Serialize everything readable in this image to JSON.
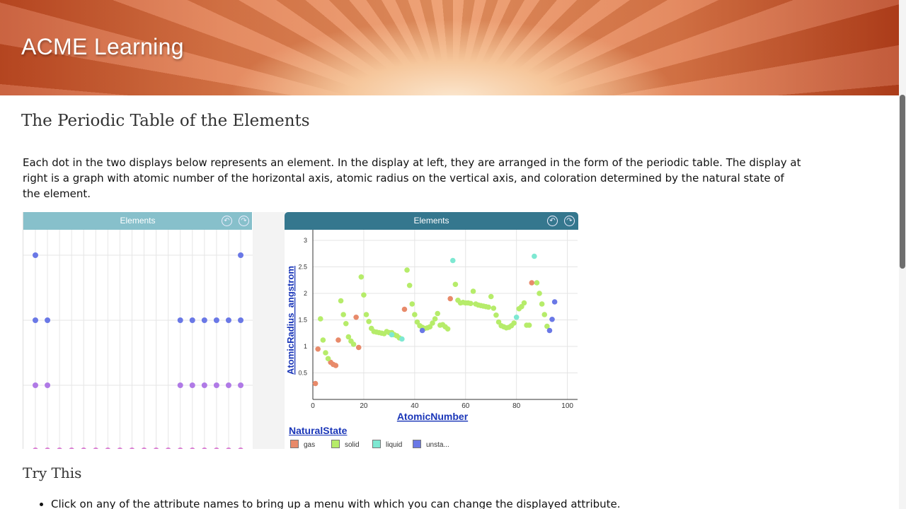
{
  "header": {
    "brand": "ACME Learning"
  },
  "page": {
    "title": "The Periodic Table of the Elements",
    "intro": "Each dot in the two displays below represents an element. In the display at left, they are arranged in the form of the periodic table. The display at right is a graph with atomic number of the horizontal axis, atomic radius on the vertical axis, and coloration determined by the natural state of the element.",
    "try_heading": "Try This",
    "tips": [
      "Click on any of the attribute names to bring up a menu with which you can change the displayed attribute."
    ]
  },
  "left_panel": {
    "title": "Elements",
    "undo_icon": "undo-icon",
    "redo_icon": "redo-icon"
  },
  "right_panel": {
    "title": "Elements",
    "undo_icon": "undo-icon",
    "redo_icon": "redo-icon"
  },
  "colors": {
    "gas": "#e88a6a",
    "solid": "#b6ec6a",
    "liquid": "#7ee8d2",
    "unstable": "#6a78e6",
    "periodic_blue": "#6a78e6",
    "periodic_purple": "#b07ae6",
    "periodic_pink": "#d878d0"
  },
  "periodic_table": {
    "rows": [
      {
        "period": 1,
        "groups": [
          1,
          18
        ]
      },
      {
        "period": 2,
        "groups": [
          1,
          2,
          13,
          14,
          15,
          16,
          17,
          18
        ]
      },
      {
        "period": 3,
        "groups": [
          1,
          2,
          13,
          14,
          15,
          16,
          17,
          18
        ]
      },
      {
        "period": 4,
        "groups": [
          1,
          2,
          3,
          4,
          5,
          6,
          7,
          8,
          9,
          10,
          11,
          12,
          13,
          14,
          15,
          16,
          17,
          18
        ]
      }
    ]
  },
  "chart_data": {
    "type": "scatter",
    "title": "Elements",
    "xlabel": "AtomicNumber",
    "ylabel": "AtomicRadius_angstrom",
    "xlim": [
      0,
      104
    ],
    "ylim": [
      0,
      3.2
    ],
    "xticks": [
      0,
      20,
      40,
      60,
      80,
      100
    ],
    "yticks": [
      0.5,
      1,
      1.5,
      2,
      2.5,
      3
    ],
    "grid": true,
    "legend": {
      "title": "NaturalState",
      "placement": "bottom",
      "entries": [
        {
          "name": "gas",
          "color": "#e88a6a"
        },
        {
          "name": "solid",
          "color": "#b6ec6a"
        },
        {
          "name": "liquid",
          "color": "#7ee8d2"
        },
        {
          "name": "unsta...",
          "color": "#6a78e6"
        }
      ]
    },
    "series": [
      {
        "name": "gas",
        "color": "#e88a6a",
        "points": [
          [
            1,
            0.3
          ],
          [
            2,
            0.95
          ],
          [
            7,
            0.7
          ],
          [
            8,
            0.66
          ],
          [
            9,
            0.64
          ],
          [
            10,
            1.12
          ],
          [
            17,
            1.55
          ],
          [
            18,
            0.98
          ],
          [
            36,
            1.7
          ],
          [
            54,
            1.9
          ],
          [
            86,
            2.2
          ]
        ]
      },
      {
        "name": "solid",
        "color": "#b6ec6a",
        "points": [
          [
            3,
            1.52
          ],
          [
            4,
            1.12
          ],
          [
            5,
            0.88
          ],
          [
            6,
            0.77
          ],
          [
            11,
            1.86
          ],
          [
            12,
            1.6
          ],
          [
            13,
            1.43
          ],
          [
            14,
            1.18
          ],
          [
            15,
            1.1
          ],
          [
            16,
            1.04
          ],
          [
            19,
            2.31
          ],
          [
            20,
            1.97
          ],
          [
            21,
            1.6
          ],
          [
            22,
            1.47
          ],
          [
            23,
            1.34
          ],
          [
            24,
            1.28
          ],
          [
            25,
            1.27
          ],
          [
            26,
            1.26
          ],
          [
            27,
            1.25
          ],
          [
            28,
            1.24
          ],
          [
            29,
            1.28
          ],
          [
            30,
            1.26
          ],
          [
            31,
            1.26
          ],
          [
            32,
            1.22
          ],
          [
            33,
            1.2
          ],
          [
            34,
            1.16
          ],
          [
            37,
            2.44
          ],
          [
            38,
            2.15
          ],
          [
            39,
            1.8
          ],
          [
            40,
            1.6
          ],
          [
            41,
            1.46
          ],
          [
            42,
            1.39
          ],
          [
            43,
            1.36
          ],
          [
            44,
            1.34
          ],
          [
            45,
            1.35
          ],
          [
            46,
            1.37
          ],
          [
            47,
            1.44
          ],
          [
            48,
            1.52
          ],
          [
            49,
            1.62
          ],
          [
            50,
            1.4
          ],
          [
            51,
            1.41
          ],
          [
            52,
            1.37
          ],
          [
            53,
            1.33
          ],
          [
            56,
            2.17
          ],
          [
            57,
            1.87
          ],
          [
            58,
            1.82
          ],
          [
            59,
            1.83
          ],
          [
            60,
            1.82
          ],
          [
            61,
            1.82
          ],
          [
            62,
            1.81
          ],
          [
            63,
            2.04
          ],
          [
            64,
            1.8
          ],
          [
            65,
            1.78
          ],
          [
            66,
            1.77
          ],
          [
            67,
            1.76
          ],
          [
            68,
            1.75
          ],
          [
            69,
            1.74
          ],
          [
            70,
            1.94
          ],
          [
            71,
            1.72
          ],
          [
            72,
            1.59
          ],
          [
            73,
            1.46
          ],
          [
            74,
            1.39
          ],
          [
            75,
            1.37
          ],
          [
            76,
            1.35
          ],
          [
            77,
            1.36
          ],
          [
            78,
            1.39
          ],
          [
            79,
            1.44
          ],
          [
            81,
            1.71
          ],
          [
            82,
            1.75
          ],
          [
            83,
            1.82
          ],
          [
            84,
            1.4
          ],
          [
            85,
            1.4
          ],
          [
            88,
            2.2
          ],
          [
            89,
            2.0
          ],
          [
            90,
            1.8
          ],
          [
            91,
            1.6
          ],
          [
            92,
            1.38
          ]
        ]
      },
      {
        "name": "liquid",
        "color": "#7ee8d2",
        "points": [
          [
            31,
            1.22
          ],
          [
            35,
            1.14
          ],
          [
            55,
            2.62
          ],
          [
            80,
            1.55
          ],
          [
            87,
            2.7
          ]
        ]
      },
      {
        "name": "unsta...",
        "color": "#6a78e6",
        "points": [
          [
            43,
            1.3
          ],
          [
            93,
            1.3
          ],
          [
            94,
            1.51
          ],
          [
            95,
            1.84
          ]
        ]
      }
    ]
  }
}
